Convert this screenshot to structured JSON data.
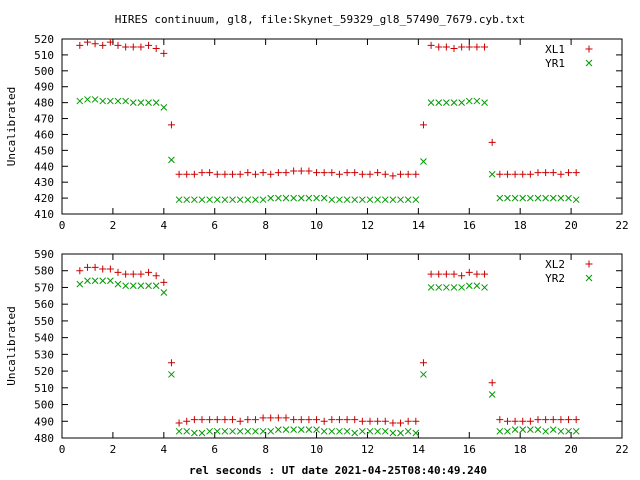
{
  "chart_data": [
    {
      "type": "scatter",
      "title": "HIRES continuum, gl8, file:Skynet_59329_gl8_57490_7679.cyb.txt",
      "xlabel": "",
      "ylabel": "Uncalibrated",
      "xlim": [
        0,
        22
      ],
      "ylim": [
        410,
        520
      ],
      "xticks": [
        0,
        2,
        4,
        6,
        8,
        10,
        12,
        14,
        16,
        18,
        20,
        22
      ],
      "yticks": [
        410,
        420,
        430,
        440,
        450,
        460,
        470,
        480,
        490,
        500,
        510,
        520
      ],
      "grid": false,
      "legend": "top-right",
      "series": [
        {
          "name": "XL1",
          "marker": "plus",
          "color": "#cc0000",
          "points": [
            [
              0.7,
              516
            ],
            [
              1.0,
              518
            ],
            [
              1.3,
              517
            ],
            [
              1.6,
              516
            ],
            [
              1.9,
              518
            ],
            [
              2.2,
              516
            ],
            [
              2.5,
              515
            ],
            [
              2.8,
              515
            ],
            [
              3.1,
              515
            ],
            [
              3.4,
              516
            ],
            [
              3.7,
              514
            ],
            [
              4.0,
              511
            ],
            [
              4.3,
              466
            ],
            [
              4.6,
              435
            ],
            [
              4.9,
              435
            ],
            [
              5.2,
              435
            ],
            [
              5.5,
              436
            ],
            [
              5.8,
              436
            ],
            [
              6.1,
              435
            ],
            [
              6.4,
              435
            ],
            [
              6.7,
              435
            ],
            [
              7.0,
              435
            ],
            [
              7.3,
              436
            ],
            [
              7.6,
              435
            ],
            [
              7.9,
              436
            ],
            [
              8.2,
              435
            ],
            [
              8.5,
              436
            ],
            [
              8.8,
              436
            ],
            [
              9.1,
              437
            ],
            [
              9.4,
              437
            ],
            [
              9.7,
              437
            ],
            [
              10.0,
              436
            ],
            [
              10.3,
              436
            ],
            [
              10.6,
              436
            ],
            [
              10.9,
              435
            ],
            [
              11.2,
              436
            ],
            [
              11.5,
              436
            ],
            [
              11.8,
              435
            ],
            [
              12.1,
              435
            ],
            [
              12.4,
              436
            ],
            [
              12.7,
              435
            ],
            [
              13.0,
              434
            ],
            [
              13.3,
              435
            ],
            [
              13.6,
              435
            ],
            [
              13.9,
              435
            ],
            [
              14.2,
              466
            ],
            [
              14.5,
              516
            ],
            [
              14.8,
              515
            ],
            [
              15.1,
              515
            ],
            [
              15.4,
              514
            ],
            [
              15.7,
              515
            ],
            [
              16.0,
              515
            ],
            [
              16.3,
              515
            ],
            [
              16.6,
              515
            ],
            [
              16.9,
              455
            ],
            [
              17.2,
              435
            ],
            [
              17.5,
              435
            ],
            [
              17.8,
              435
            ],
            [
              18.1,
              435
            ],
            [
              18.4,
              435
            ],
            [
              18.7,
              436
            ],
            [
              19.0,
              436
            ],
            [
              19.3,
              436
            ],
            [
              19.6,
              435
            ],
            [
              19.9,
              436
            ],
            [
              20.2,
              436
            ]
          ]
        },
        {
          "name": "YR1",
          "marker": "cross",
          "color": "#009900",
          "points": [
            [
              0.7,
              481
            ],
            [
              1.0,
              482
            ],
            [
              1.3,
              482
            ],
            [
              1.6,
              481
            ],
            [
              1.9,
              481
            ],
            [
              2.2,
              481
            ],
            [
              2.5,
              481
            ],
            [
              2.8,
              480
            ],
            [
              3.1,
              480
            ],
            [
              3.4,
              480
            ],
            [
              3.7,
              480
            ],
            [
              4.0,
              477
            ],
            [
              4.3,
              444
            ],
            [
              4.6,
              419
            ],
            [
              4.9,
              419
            ],
            [
              5.2,
              419
            ],
            [
              5.5,
              419
            ],
            [
              5.8,
              419
            ],
            [
              6.1,
              419
            ],
            [
              6.4,
              419
            ],
            [
              6.7,
              419
            ],
            [
              7.0,
              419
            ],
            [
              7.3,
              419
            ],
            [
              7.6,
              419
            ],
            [
              7.9,
              419
            ],
            [
              8.2,
              420
            ],
            [
              8.5,
              420
            ],
            [
              8.8,
              420
            ],
            [
              9.1,
              420
            ],
            [
              9.4,
              420
            ],
            [
              9.7,
              420
            ],
            [
              10.0,
              420
            ],
            [
              10.3,
              420
            ],
            [
              10.6,
              419
            ],
            [
              10.9,
              419
            ],
            [
              11.2,
              419
            ],
            [
              11.5,
              419
            ],
            [
              11.8,
              419
            ],
            [
              12.1,
              419
            ],
            [
              12.4,
              419
            ],
            [
              12.7,
              419
            ],
            [
              13.0,
              419
            ],
            [
              13.3,
              419
            ],
            [
              13.6,
              419
            ],
            [
              13.9,
              419
            ],
            [
              14.2,
              443
            ],
            [
              14.5,
              480
            ],
            [
              14.8,
              480
            ],
            [
              15.1,
              480
            ],
            [
              15.4,
              480
            ],
            [
              15.7,
              480
            ],
            [
              16.0,
              481
            ],
            [
              16.3,
              481
            ],
            [
              16.6,
              480
            ],
            [
              16.9,
              435
            ],
            [
              17.2,
              420
            ],
            [
              17.5,
              420
            ],
            [
              17.8,
              420
            ],
            [
              18.1,
              420
            ],
            [
              18.4,
              420
            ],
            [
              18.7,
              420
            ],
            [
              19.0,
              420
            ],
            [
              19.3,
              420
            ],
            [
              19.6,
              420
            ],
            [
              19.9,
              420
            ],
            [
              20.2,
              419
            ]
          ]
        }
      ]
    },
    {
      "type": "scatter",
      "title": "",
      "xlabel": "rel seconds : UT date 2021-04-25T08:40:49.240",
      "ylabel": "Uncalibrated",
      "xlim": [
        0,
        22
      ],
      "ylim": [
        480,
        590
      ],
      "xticks": [
        0,
        2,
        4,
        6,
        8,
        10,
        12,
        14,
        16,
        18,
        20,
        22
      ],
      "yticks": [
        480,
        490,
        500,
        510,
        520,
        530,
        540,
        550,
        560,
        570,
        580,
        590
      ],
      "grid": false,
      "legend": "top-right",
      "series": [
        {
          "name": "XL2",
          "marker": "plus",
          "color": "#cc0000",
          "points": [
            [
              0.7,
              580
            ],
            [
              1.0,
              582
            ],
            [
              1.3,
              582
            ],
            [
              1.6,
              581
            ],
            [
              1.9,
              581
            ],
            [
              2.2,
              579
            ],
            [
              2.5,
              578
            ],
            [
              2.8,
              578
            ],
            [
              3.1,
              578
            ],
            [
              3.4,
              579
            ],
            [
              3.7,
              577
            ],
            [
              4.0,
              573
            ],
            [
              4.3,
              525
            ],
            [
              4.6,
              489
            ],
            [
              4.9,
              490
            ],
            [
              5.2,
              491
            ],
            [
              5.5,
              491
            ],
            [
              5.8,
              491
            ],
            [
              6.1,
              491
            ],
            [
              6.4,
              491
            ],
            [
              6.7,
              491
            ],
            [
              7.0,
              490
            ],
            [
              7.3,
              491
            ],
            [
              7.6,
              491
            ],
            [
              7.9,
              492
            ],
            [
              8.2,
              492
            ],
            [
              8.5,
              492
            ],
            [
              8.8,
              492
            ],
            [
              9.1,
              491
            ],
            [
              9.4,
              491
            ],
            [
              9.7,
              491
            ],
            [
              10.0,
              491
            ],
            [
              10.3,
              490
            ],
            [
              10.6,
              491
            ],
            [
              10.9,
              491
            ],
            [
              11.2,
              491
            ],
            [
              11.5,
              491
            ],
            [
              11.8,
              490
            ],
            [
              12.1,
              490
            ],
            [
              12.4,
              490
            ],
            [
              12.7,
              490
            ],
            [
              13.0,
              489
            ],
            [
              13.3,
              489
            ],
            [
              13.6,
              490
            ],
            [
              13.9,
              490
            ],
            [
              14.2,
              525
            ],
            [
              14.5,
              578
            ],
            [
              14.8,
              578
            ],
            [
              15.1,
              578
            ],
            [
              15.4,
              578
            ],
            [
              15.7,
              577
            ],
            [
              16.0,
              579
            ],
            [
              16.3,
              578
            ],
            [
              16.6,
              578
            ],
            [
              16.9,
              513
            ],
            [
              17.2,
              491
            ],
            [
              17.5,
              490
            ],
            [
              17.8,
              490
            ],
            [
              18.1,
              490
            ],
            [
              18.4,
              490
            ],
            [
              18.7,
              491
            ],
            [
              19.0,
              491
            ],
            [
              19.3,
              491
            ],
            [
              19.6,
              491
            ],
            [
              19.9,
              491
            ],
            [
              20.2,
              491
            ]
          ]
        },
        {
          "name": "YR2",
          "marker": "cross",
          "color": "#009900",
          "points": [
            [
              0.7,
              572
            ],
            [
              1.0,
              574
            ],
            [
              1.3,
              574
            ],
            [
              1.6,
              574
            ],
            [
              1.9,
              574
            ],
            [
              2.2,
              572
            ],
            [
              2.5,
              571
            ],
            [
              2.8,
              571
            ],
            [
              3.1,
              571
            ],
            [
              3.4,
              571
            ],
            [
              3.7,
              571
            ],
            [
              4.0,
              567
            ],
            [
              4.3,
              518
            ],
            [
              4.6,
              484
            ],
            [
              4.9,
              484
            ],
            [
              5.2,
              483
            ],
            [
              5.5,
              483
            ],
            [
              5.8,
              484
            ],
            [
              6.1,
              484
            ],
            [
              6.4,
              484
            ],
            [
              6.7,
              484
            ],
            [
              7.0,
              484
            ],
            [
              7.3,
              484
            ],
            [
              7.6,
              484
            ],
            [
              7.9,
              484
            ],
            [
              8.2,
              484
            ],
            [
              8.5,
              485
            ],
            [
              8.8,
              485
            ],
            [
              9.1,
              485
            ],
            [
              9.4,
              485
            ],
            [
              9.7,
              485
            ],
            [
              10.0,
              485
            ],
            [
              10.3,
              484
            ],
            [
              10.6,
              484
            ],
            [
              10.9,
              484
            ],
            [
              11.2,
              484
            ],
            [
              11.5,
              483
            ],
            [
              11.8,
              484
            ],
            [
              12.1,
              484
            ],
            [
              12.4,
              484
            ],
            [
              12.7,
              484
            ],
            [
              13.0,
              483
            ],
            [
              13.3,
              483
            ],
            [
              13.6,
              484
            ],
            [
              13.9,
              483
            ],
            [
              14.2,
              518
            ],
            [
              14.5,
              570
            ],
            [
              14.8,
              570
            ],
            [
              15.1,
              570
            ],
            [
              15.4,
              570
            ],
            [
              15.7,
              570
            ],
            [
              16.0,
              571
            ],
            [
              16.3,
              571
            ],
            [
              16.6,
              570
            ],
            [
              16.9,
              506
            ],
            [
              17.2,
              484
            ],
            [
              17.5,
              484
            ],
            [
              17.8,
              485
            ],
            [
              18.1,
              485
            ],
            [
              18.4,
              485
            ],
            [
              18.7,
              485
            ],
            [
              19.0,
              484
            ],
            [
              19.3,
              485
            ],
            [
              19.6,
              484
            ],
            [
              19.9,
              484
            ],
            [
              20.2,
              484
            ]
          ]
        }
      ]
    }
  ]
}
